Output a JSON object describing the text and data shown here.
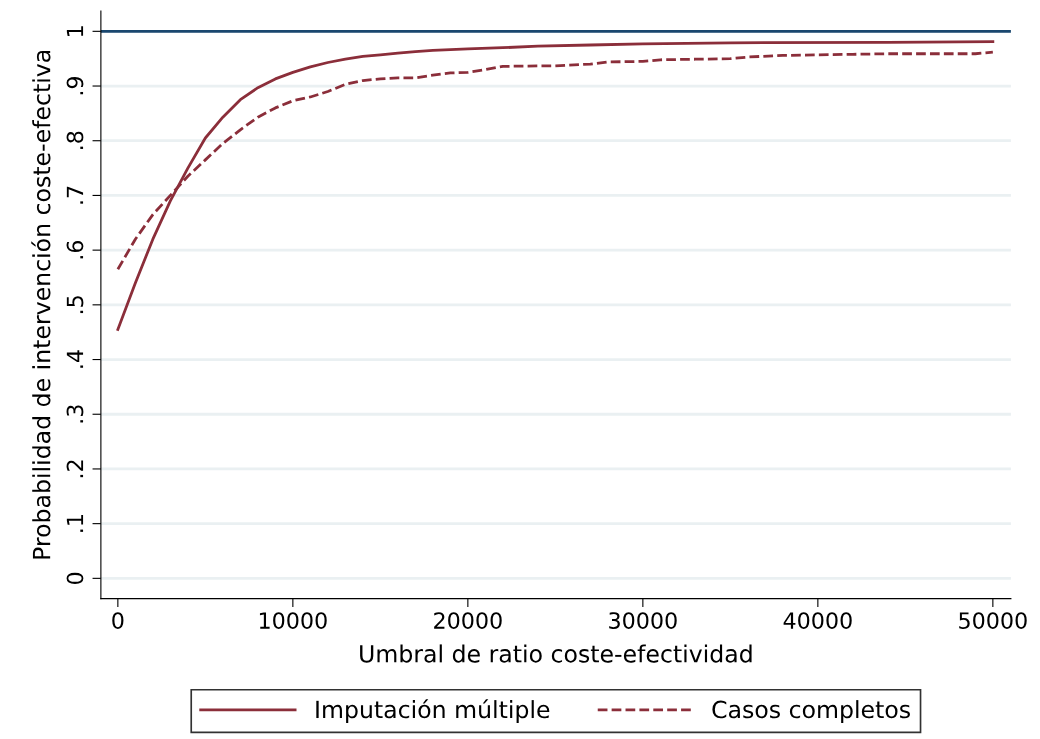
{
  "chart_data": {
    "type": "line",
    "xlabel": "Umbral de ratio coste-efectividad",
    "ylabel": "Probabilidad de intervención coste-efectiva",
    "series": [
      {
        "name": "Imputación múltiple",
        "color": "#8b2e3a",
        "line_style": "solid",
        "x": [
          0,
          1000,
          2000,
          3000,
          4000,
          5000,
          6000,
          7000,
          8000,
          9000,
          10000,
          11000,
          12000,
          13000,
          14000,
          15000,
          16000,
          17000,
          18000,
          20000,
          22000,
          24000,
          27000,
          30000,
          35000,
          44000,
          50000
        ],
        "values": [
          0.455,
          0.54,
          0.62,
          0.69,
          0.75,
          0.805,
          0.843,
          0.875,
          0.897,
          0.913,
          0.925,
          0.935,
          0.943,
          0.949,
          0.954,
          0.957,
          0.96,
          0.963,
          0.965,
          0.968,
          0.97,
          0.973,
          0.975,
          0.977,
          0.979,
          0.98,
          0.981
        ]
      },
      {
        "name": "Casos completos",
        "color": "#8b2e3a",
        "line_style": "dashed",
        "x": [
          0,
          1000,
          2000,
          3000,
          4000,
          5000,
          6000,
          7000,
          8000,
          9000,
          10000,
          11000,
          12000,
          13000,
          14000,
          15000,
          16000,
          17000,
          18000,
          19000,
          20000,
          21000,
          22000,
          25000,
          27000,
          28000,
          30000,
          31000,
          33000,
          35000,
          36000,
          38000,
          40000,
          42000,
          44000,
          49000,
          50000
        ],
        "values": [
          0.565,
          0.62,
          0.665,
          0.7,
          0.735,
          0.765,
          0.795,
          0.82,
          0.843,
          0.86,
          0.873,
          0.88,
          0.89,
          0.903,
          0.91,
          0.913,
          0.915,
          0.915,
          0.92,
          0.924,
          0.925,
          0.93,
          0.936,
          0.937,
          0.94,
          0.944,
          0.945,
          0.948,
          0.949,
          0.95,
          0.953,
          0.956,
          0.957,
          0.958,
          0.959,
          0.959,
          0.962
        ]
      }
    ],
    "ref_lines": [
      {
        "axis": "y",
        "value": 1,
        "color": "#1a476f"
      }
    ],
    "xlim": [
      -970,
      51030
    ],
    "xticks": [
      0,
      10000,
      20000,
      30000,
      40000,
      50000
    ],
    "ylim": [
      -0.037,
      1.037
    ],
    "yticks": [
      {
        "value": 0,
        "label": "0"
      },
      {
        "value": 0.1,
        "label": ".1"
      },
      {
        "value": 0.2,
        "label": ".2"
      },
      {
        "value": 0.3,
        "label": ".3"
      },
      {
        "value": 0.4,
        "label": ".4"
      },
      {
        "value": 0.5,
        "label": ".5"
      },
      {
        "value": 0.6,
        "label": ".6"
      },
      {
        "value": 0.7,
        "label": ".7"
      },
      {
        "value": 0.8,
        "label": ".8"
      },
      {
        "value": 0.9,
        "label": ".9"
      },
      {
        "value": 1,
        "label": "1"
      }
    ],
    "grid": "y",
    "legend": "bottom"
  }
}
